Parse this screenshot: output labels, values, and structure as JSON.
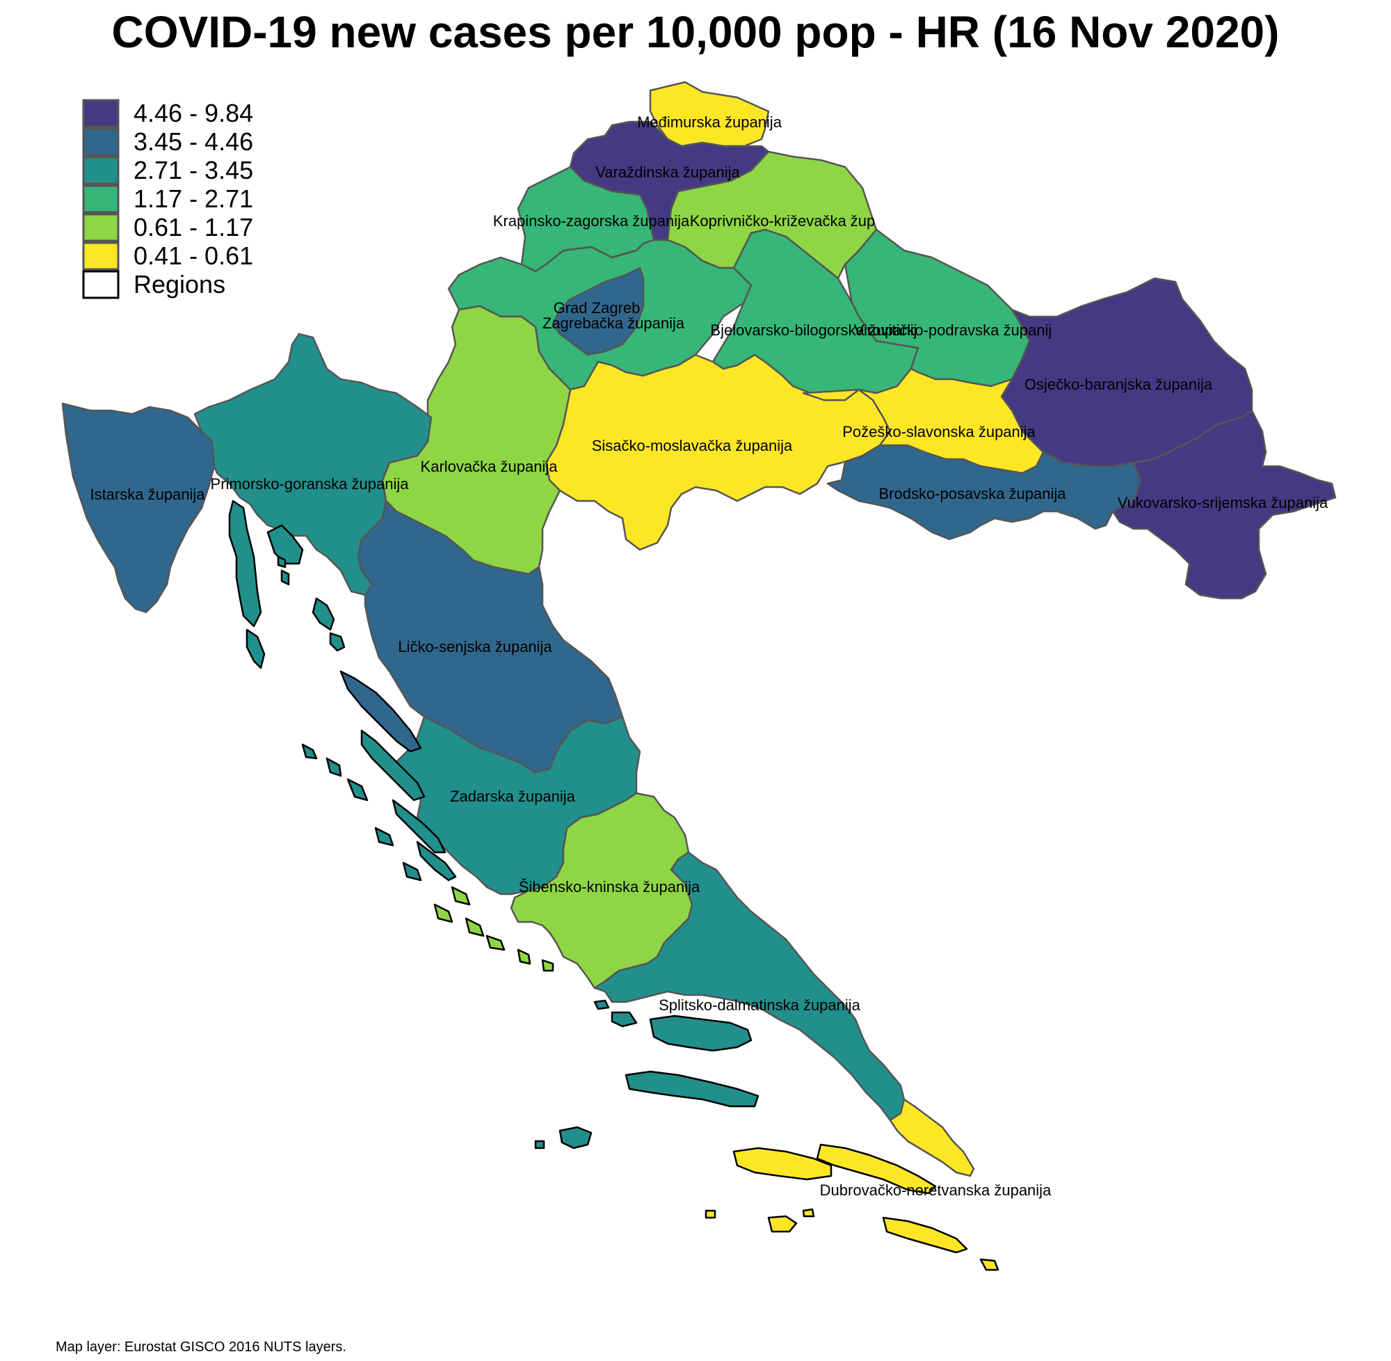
{
  "title": "COVID-19 new cases per 10,000 pop - HR (16 Nov 2020)",
  "source": "Map layer: Eurostat GISCO 2016 NUTS layers.",
  "legend": {
    "items": [
      {
        "label": "4.46 - 9.84",
        "color": "#433A83"
      },
      {
        "label": "3.45 - 4.46",
        "color": "#30678D"
      },
      {
        "label": "2.71 - 3.45",
        "color": "#218F8B"
      },
      {
        "label": "1.17 - 2.71",
        "color": "#36B677"
      },
      {
        "label": "0.61 - 1.17",
        "color": "#8ED644"
      },
      {
        "label": "0.41 - 0.61",
        "color": "#FDE725"
      },
      {
        "label": "Regions",
        "color": "#FFFFFF"
      }
    ]
  },
  "regions": {
    "medimurska": {
      "label": "Međimurska županija",
      "class": 5
    },
    "varazdinska": {
      "label": "Varaždinska županija",
      "class": 0
    },
    "krapinsko": {
      "label": "Krapinsko-zagorska županija",
      "class": 3
    },
    "koprivnicko": {
      "label": "Koprivničko-križevačka žup",
      "class": 4
    },
    "zagreb_grad": {
      "label": "Grad Zagreb",
      "class": 1
    },
    "zagrebacka": {
      "label": "Zagrebačka županija",
      "class": 3
    },
    "bjelovarsko": {
      "label": "Bjelovarsko-bilogorska županij",
      "class": 3
    },
    "viroviticko": {
      "label": "Virovitičko-podravska županij",
      "class": 3
    },
    "osjecko": {
      "label": "Osječko-baranjska županija",
      "class": 0
    },
    "sisacko": {
      "label": "Sisačko-moslavačka županija",
      "class": 5
    },
    "pozesko": {
      "label": "Požeško-slavonska županija",
      "class": 5
    },
    "brodsko": {
      "label": "Brodsko-posavska županija",
      "class": 1
    },
    "vukovarsko": {
      "label": "Vukovarsko-srijemska županija",
      "class": 0
    },
    "karlovacka": {
      "label": "Karlovačka županija",
      "class": 4
    },
    "istarska": {
      "label": "Istarska županija",
      "class": 1
    },
    "primorsko": {
      "label": "Primorsko-goranska županija",
      "class": 2
    },
    "licko": {
      "label": "Ličko-senjska županija",
      "class": 1
    },
    "zadarska": {
      "label": "Zadarska županija",
      "class": 2
    },
    "sibensko": {
      "label": "Šibensko-kninska županija",
      "class": 4
    },
    "splitsko": {
      "label": "Splitsko-dalmatinska županija",
      "class": 2
    },
    "dubrovacko": {
      "label": "Dubrovačko-neretvanska županija",
      "class": 5
    }
  }
}
